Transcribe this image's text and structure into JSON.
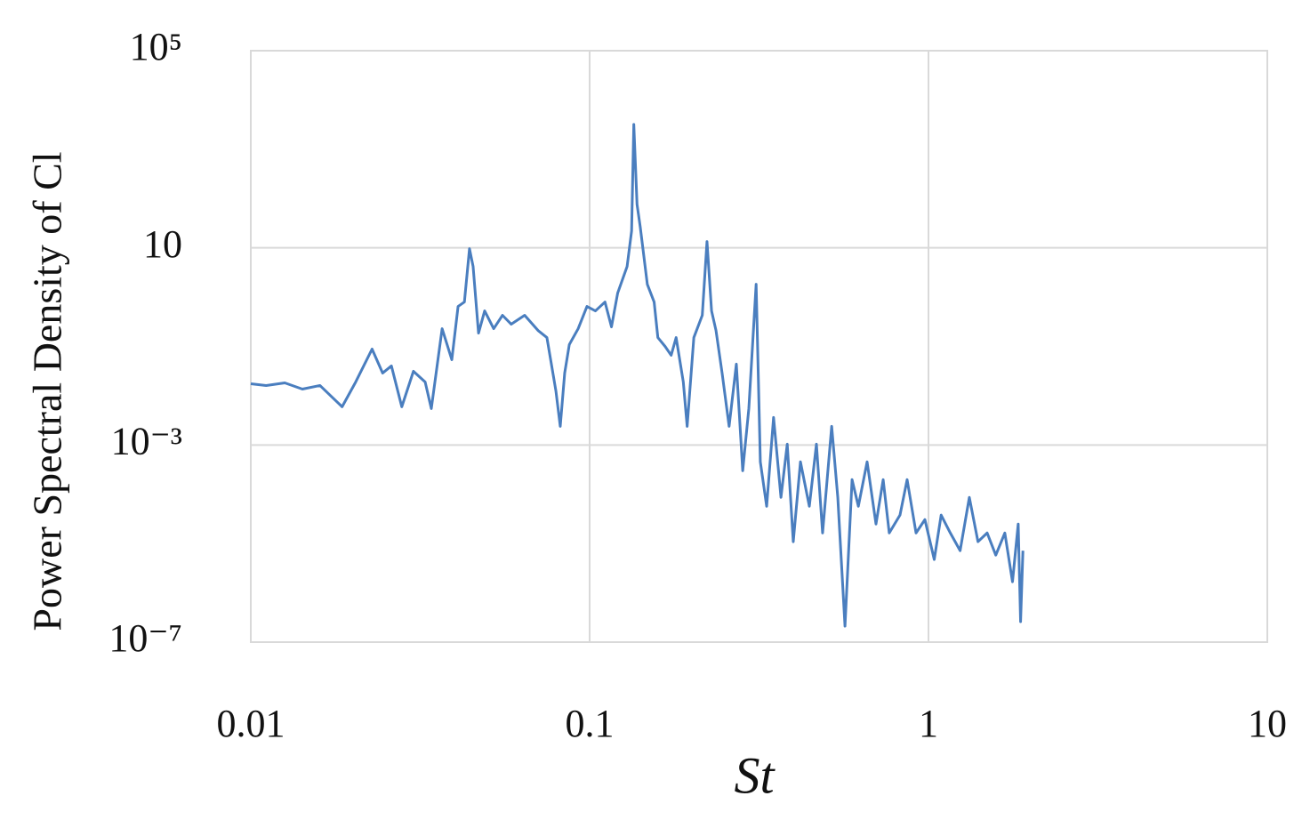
{
  "chart_data": {
    "type": "line",
    "x_label": "St",
    "y_label": "Power Spectral Density of Cl",
    "log_x": true,
    "log_y": true,
    "grid": true,
    "xlim": [
      0.01,
      10
    ],
    "ylim": [
      1e-07,
      100000
    ],
    "xticks": [
      0.01,
      0.1,
      1,
      10
    ],
    "yticks": [
      {
        "value": 1e-07,
        "label": "10⁻⁷"
      },
      {
        "value": 0.001,
        "label": "10⁻³"
      },
      10,
      {
        "value": 100000,
        "label": "10⁵"
      }
    ],
    "series": [
      {
        "color": "#4a7ebf",
        "x": [
          0.01,
          0.0111,
          0.0126,
          0.0142,
          0.016,
          0.0186,
          0.0204,
          0.0228,
          0.0245,
          0.026,
          0.0279,
          0.0302,
          0.0327,
          0.0341,
          0.0367,
          0.0392,
          0.0409,
          0.0427,
          0.0442,
          0.0453,
          0.047,
          0.049,
          0.0521,
          0.0553,
          0.0587,
          0.0643,
          0.0704,
          0.0748,
          0.0795,
          0.0819,
          0.0844,
          0.0871,
          0.0925,
          0.0982,
          0.104,
          0.111,
          0.116,
          0.121,
          0.129,
          0.133,
          0.135,
          0.138,
          0.141,
          0.148,
          0.155,
          0.159,
          0.167,
          0.174,
          0.18,
          0.189,
          0.194,
          0.203,
          0.215,
          0.222,
          0.229,
          0.236,
          0.246,
          0.258,
          0.271,
          0.283,
          0.295,
          0.31,
          0.319,
          0.333,
          0.349,
          0.367,
          0.383,
          0.399,
          0.419,
          0.445,
          0.467,
          0.487,
          0.518,
          0.54,
          0.567,
          0.595,
          0.621,
          0.659,
          0.7,
          0.735,
          0.766,
          0.824,
          0.865,
          0.919,
          0.976,
          1.04,
          1.09,
          1.16,
          1.24,
          1.32,
          1.4,
          1.49,
          1.58,
          1.68,
          1.77,
          1.84,
          1.87,
          1.9
        ],
        "values": [
          0.0175,
          0.0161,
          0.0182,
          0.0136,
          0.0161,
          0.00596,
          0.019,
          0.0883,
          0.0288,
          0.0402,
          0.00596,
          0.0313,
          0.019,
          0.00548,
          0.229,
          0.0537,
          0.647,
          0.796,
          9.59,
          4.19,
          0.186,
          0.526,
          0.229,
          0.428,
          0.282,
          0.428,
          0.211,
          0.151,
          0.0126,
          0.00239,
          0.0288,
          0.109,
          0.229,
          0.647,
          0.526,
          0.796,
          0.249,
          1.21,
          4.19,
          22,
          3200,
          76.4,
          27,
          1.82,
          0.796,
          0.151,
          0.1,
          0.0661,
          0.151,
          0.019,
          0.00239,
          0.151,
          0.428,
          13.4,
          0.526,
          0.211,
          0.0288,
          0.00239,
          0.0437,
          0.0003,
          0.00548,
          1.82,
          0.000455,
          5.71e-05,
          0.00362,
          8.65e-05,
          0.00104,
          1.09e-05,
          0.000455,
          5.71e-05,
          0.00104,
          1.64e-05,
          0.00239,
          8.65e-05,
          2.11e-07,
          0.000198,
          5.71e-05,
          0.000455,
          2.49e-05,
          0.000198,
          1.64e-05,
          3.78e-05,
          0.000198,
          1.64e-05,
          3.06e-05,
          4.74e-06,
          3.78e-05,
          1.64e-05,
          7.18e-06,
          8.65e-05,
          1.09e-05,
          1.64e-05,
          5.83e-06,
          1.64e-05,
          1.68e-06,
          2.49e-05,
          2.6e-07,
          7.18e-06
        ]
      }
    ]
  }
}
